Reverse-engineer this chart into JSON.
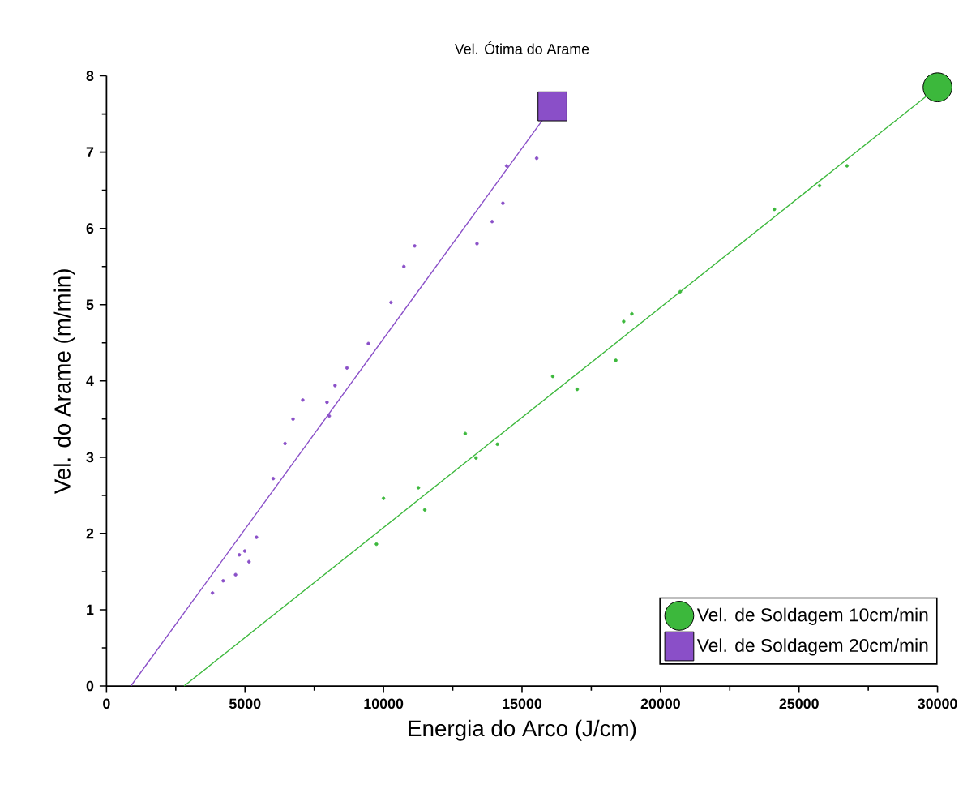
{
  "chart_data": {
    "type": "line",
    "title": "Vel. Ótima do Arame",
    "xlabel": "Energia do Arco (J/cm)",
    "ylabel": "Vel. do Arame (m/min)",
    "xlim": [
      0,
      30000
    ],
    "ylim": [
      0,
      8
    ],
    "xticks": [
      0,
      5000,
      10000,
      15000,
      20000,
      25000,
      30000
    ],
    "yticks": [
      0,
      1,
      2,
      3,
      4,
      5,
      6,
      7,
      8
    ],
    "legend": "bottom right",
    "grid": false,
    "series": [
      {
        "name": "Vel. de Soldagem 10cm/min",
        "color": "#3cb83c",
        "marker": "circle",
        "x": [
          2800,
          30000
        ],
        "values": [
          0,
          7.85
        ]
      },
      {
        "name": "Vel. de Soldagem 20cm/min",
        "color": "#8a4fc8",
        "marker": "square",
        "x": [
          880,
          16100
        ],
        "values": [
          0,
          7.6
        ]
      },
      {
        "type": "scatter",
        "color": "#3cb83c",
        "x": [
          9745,
          10000,
          11260,
          11490,
          12950,
          13340,
          14110,
          16110,
          16990,
          18385,
          18670,
          18965,
          20710,
          24110,
          25740,
          26730
        ],
        "values": [
          1.86,
          2.46,
          2.6,
          2.31,
          3.31,
          2.99,
          3.17,
          4.06,
          3.89,
          4.27,
          4.78,
          4.88,
          5.17,
          6.25,
          6.56,
          6.82
        ]
      },
      {
        "type": "scatter",
        "color": "#8a4fc8",
        "x": [
          3826,
          4212,
          4660,
          4795,
          4990,
          5145,
          5415,
          6020,
          6445,
          6735,
          7085,
          7960,
          8040,
          8250,
          8680,
          9455,
          10270,
          10735,
          11125,
          13375,
          13920,
          14310,
          14445,
          15530
        ],
        "values": [
          1.22,
          1.38,
          1.46,
          1.72,
          1.77,
          1.63,
          1.95,
          2.72,
          3.18,
          3.5,
          3.75,
          3.72,
          3.54,
          3.94,
          4.17,
          4.49,
          5.03,
          5.5,
          5.77,
          5.8,
          6.09,
          6.33,
          6.82,
          6.92
        ]
      }
    ]
  }
}
